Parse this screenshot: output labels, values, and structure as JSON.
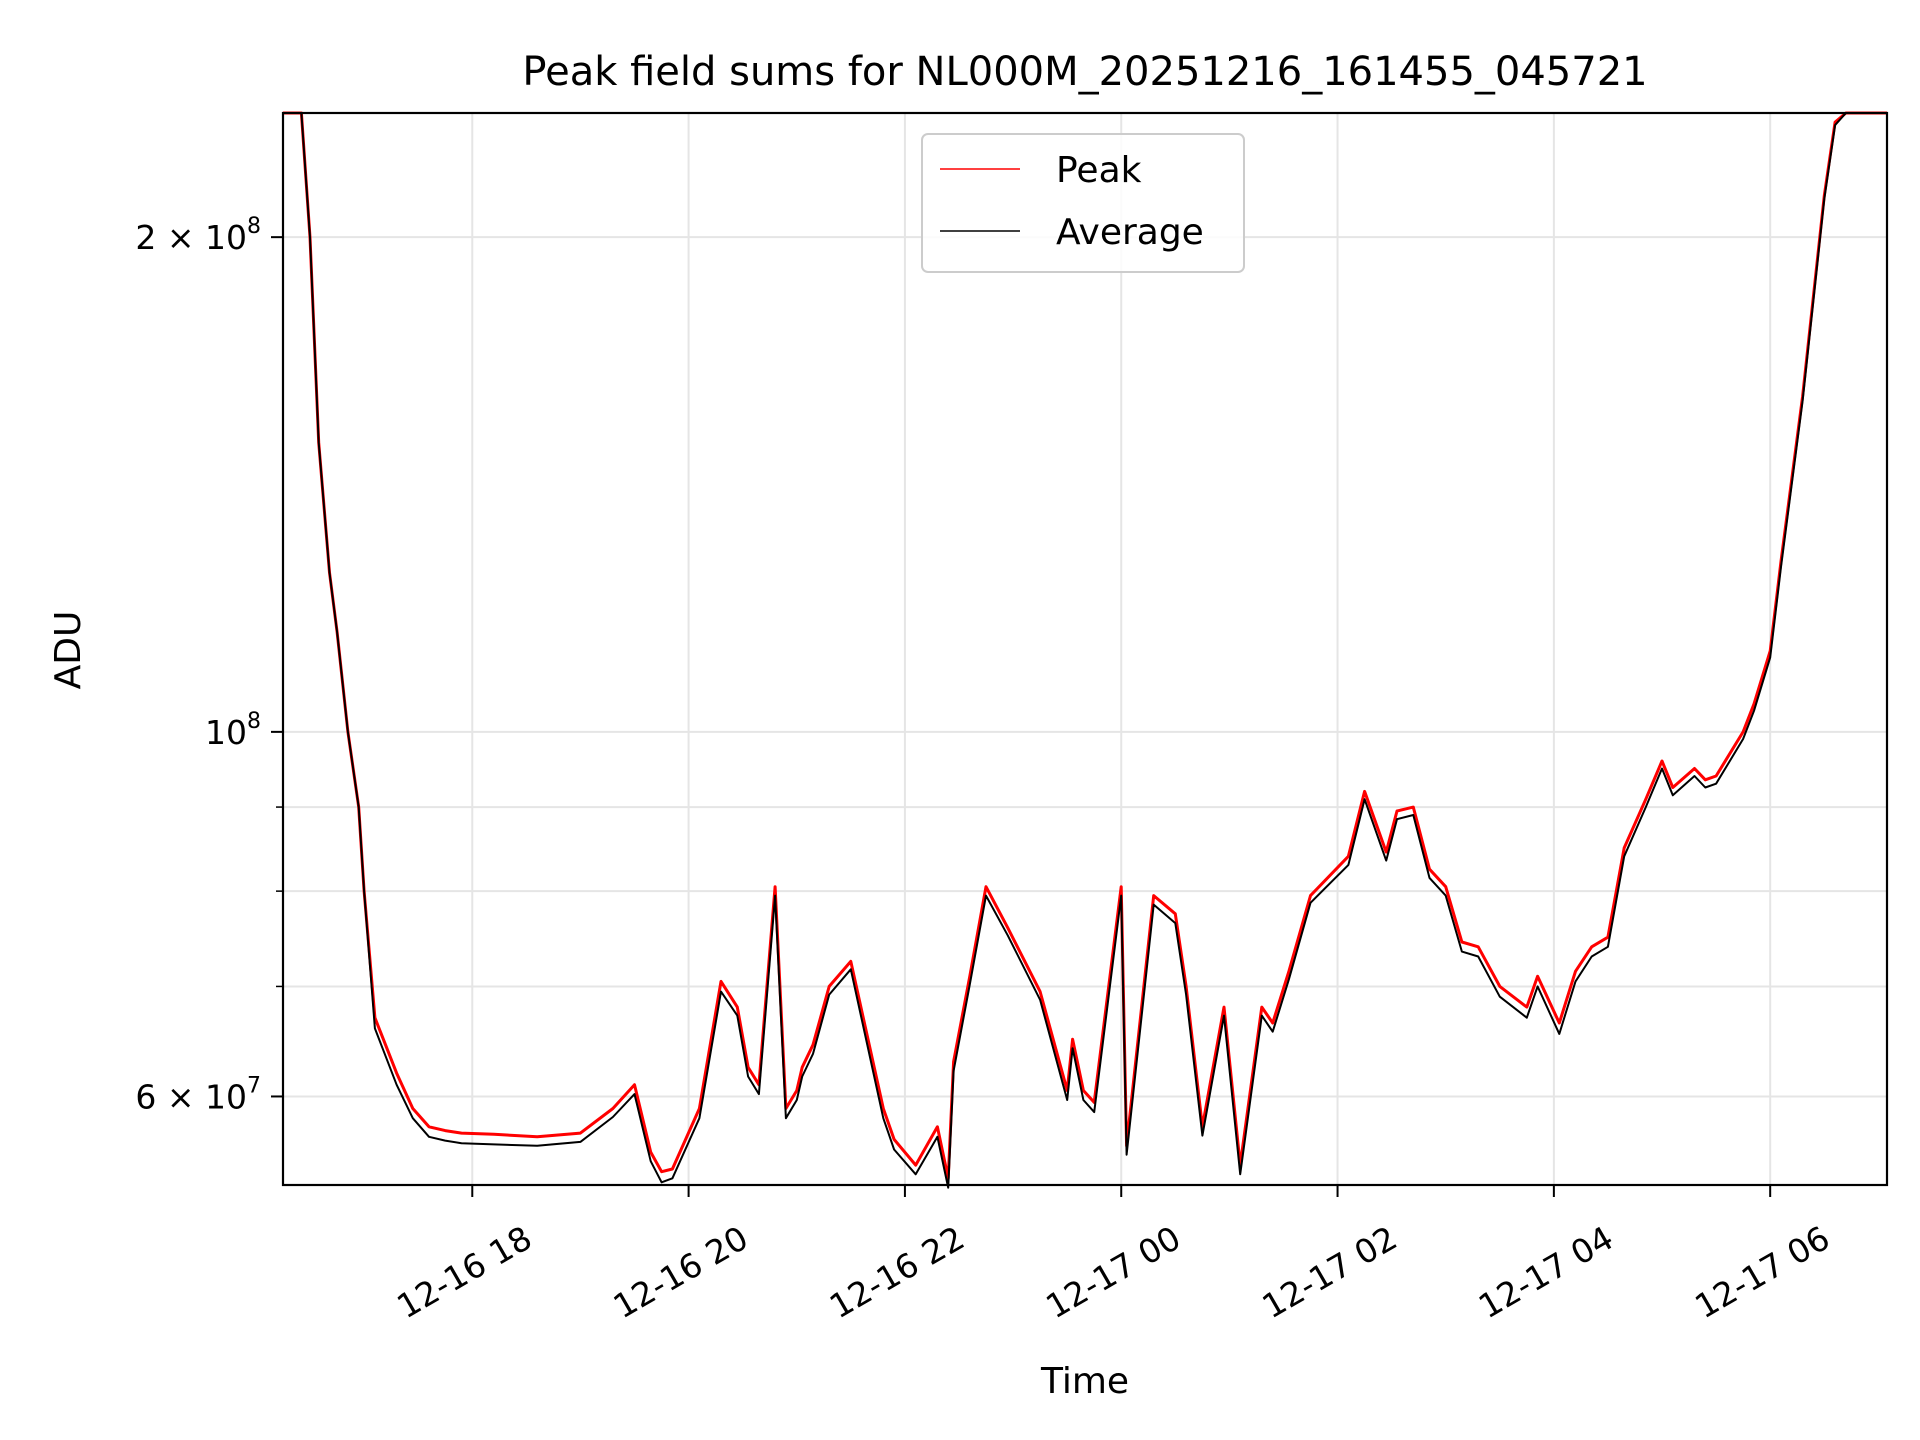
{
  "chart_data": {
    "type": "line",
    "title": "Peak field sums for NL000M_20251216_161455_045721",
    "xlabel": "Time",
    "ylabel": "ADU",
    "yscale": "log",
    "xlim_hours": [
      16.25,
      31.08
    ],
    "ylim": [
      53000000,
      238000000
    ],
    "grid": true,
    "legend_position": "upper center",
    "x_ticks": [
      {
        "hour": 18,
        "label": "12-16 18"
      },
      {
        "hour": 20,
        "label": "12-16 20"
      },
      {
        "hour": 22,
        "label": "12-16 22"
      },
      {
        "hour": 24,
        "label": "12-17 00"
      },
      {
        "hour": 26,
        "label": "12-17 02"
      },
      {
        "hour": 28,
        "label": "12-17 04"
      },
      {
        "hour": 30,
        "label": "12-17 06"
      }
    ],
    "y_major_ticks": [
      {
        "value": 60000000,
        "mantissa": "6",
        "exponent": "7"
      },
      {
        "value": 100000000,
        "mantissa": "",
        "exponent": "8"
      },
      {
        "value": 200000000,
        "mantissa": "2",
        "exponent": "8"
      }
    ],
    "y_minor_ticks": [
      70000000,
      80000000,
      90000000
    ],
    "series": [
      {
        "name": "Peak",
        "color": "#ff0000",
        "x_hours": [
          16.25,
          16.42,
          16.5,
          16.58,
          16.68,
          16.75,
          16.85,
          16.95,
          17.0,
          17.1,
          17.3,
          17.45,
          17.6,
          17.75,
          17.9,
          18.2,
          18.6,
          19.0,
          19.3,
          19.5,
          19.65,
          19.75,
          19.85,
          20.1,
          20.3,
          20.45,
          20.55,
          20.65,
          20.8,
          20.9,
          21.0,
          21.05,
          21.15,
          21.3,
          21.5,
          21.8,
          21.9,
          22.1,
          22.3,
          22.4,
          22.45,
          22.6,
          22.75,
          22.95,
          23.25,
          23.5,
          23.55,
          23.65,
          23.75,
          24.0,
          24.05,
          24.3,
          24.5,
          24.6,
          24.75,
          24.95,
          25.1,
          25.3,
          25.4,
          25.55,
          25.75,
          26.1,
          26.25,
          26.45,
          26.55,
          26.7,
          26.85,
          27.0,
          27.15,
          27.3,
          27.5,
          27.75,
          27.85,
          28.05,
          28.2,
          28.35,
          28.5,
          28.65,
          28.85,
          29.0,
          29.1,
          29.3,
          29.4,
          29.5,
          29.75,
          29.85,
          30.0,
          30.1,
          30.3,
          30.5,
          30.6,
          30.7,
          30.82,
          30.93,
          31.08
        ],
        "values": [
          238000000,
          238000000,
          200000000,
          150000000,
          125000000,
          115000000,
          100000000,
          90000000,
          80000000,
          67000000,
          62000000,
          59000000,
          57500000,
          57200000,
          57000000,
          56900000,
          56700000,
          57000000,
          59000000,
          61000000,
          55500000,
          54000000,
          54200000,
          59000000,
          70500000,
          68000000,
          62500000,
          61000000,
          80500000,
          59000000,
          60500000,
          62500000,
          64500000,
          70000000,
          72500000,
          59000000,
          56500000,
          54500000,
          57500000,
          53500000,
          63000000,
          71000000,
          80500000,
          76000000,
          69500000,
          60500000,
          65000000,
          60500000,
          59500000,
          80500000,
          56000000,
          79500000,
          77500000,
          70000000,
          57500000,
          68000000,
          54500000,
          68000000,
          66500000,
          71500000,
          79500000,
          84000000,
          92000000,
          84500000,
          89500000,
          90000000,
          82500000,
          80500000,
          74500000,
          74000000,
          70000000,
          68000000,
          71000000,
          66500000,
          71500000,
          74000000,
          75000000,
          85000000,
          91000000,
          96000000,
          92500000,
          95000000,
          93500000,
          94000000,
          100000000,
          104000000,
          112000000,
          127000000,
          160000000,
          212000000,
          235000000,
          238000000,
          238000000,
          238000000,
          238000000
        ]
      },
      {
        "name": "Average",
        "color": "#000000",
        "x_hours": [
          16.25,
          16.42,
          16.5,
          16.58,
          16.68,
          16.75,
          16.85,
          16.95,
          17.0,
          17.1,
          17.3,
          17.45,
          17.6,
          17.75,
          17.9,
          18.2,
          18.6,
          19.0,
          19.3,
          19.5,
          19.65,
          19.75,
          19.85,
          20.1,
          20.3,
          20.45,
          20.55,
          20.65,
          20.8,
          20.9,
          21.0,
          21.05,
          21.15,
          21.3,
          21.5,
          21.8,
          21.9,
          22.1,
          22.3,
          22.4,
          22.45,
          22.6,
          22.75,
          22.95,
          23.25,
          23.5,
          23.55,
          23.65,
          23.75,
          24.0,
          24.05,
          24.3,
          24.5,
          24.6,
          24.75,
          24.95,
          25.1,
          25.3,
          25.4,
          25.55,
          25.75,
          26.1,
          26.25,
          26.45,
          26.55,
          26.7,
          26.85,
          27.0,
          27.15,
          27.3,
          27.5,
          27.75,
          27.85,
          28.05,
          28.2,
          28.35,
          28.5,
          28.65,
          28.85,
          29.0,
          29.1,
          29.3,
          29.4,
          29.5,
          29.75,
          29.85,
          30.0,
          30.1,
          30.3,
          30.5,
          30.6,
          30.7,
          30.82,
          30.93,
          31.08
        ],
        "values": [
          238000000,
          238000000,
          200000000,
          150000000,
          125000000,
          115000000,
          100000000,
          90000000,
          80000000,
          66000000,
          61000000,
          58200000,
          56700000,
          56400000,
          56200000,
          56100000,
          56000000,
          56300000,
          58300000,
          60200000,
          54800000,
          53200000,
          53500000,
          58200000,
          69500000,
          67200000,
          61700000,
          60200000,
          79500000,
          58200000,
          59700000,
          61700000,
          63700000,
          69200000,
          71700000,
          58200000,
          55700000,
          53800000,
          56700000,
          52800000,
          62200000,
          70200000,
          79500000,
          75200000,
          68700000,
          59700000,
          64200000,
          59700000,
          58700000,
          79500000,
          55300000,
          78500000,
          76500000,
          69200000,
          56800000,
          67200000,
          53800000,
          67200000,
          65700000,
          70700000,
          78700000,
          83000000,
          91000000,
          83500000,
          88500000,
          89000000,
          81500000,
          79500000,
          73500000,
          73000000,
          69000000,
          67000000,
          70000000,
          65500000,
          70500000,
          73000000,
          74000000,
          84000000,
          90000000,
          95000000,
          91500000,
          94000000,
          92500000,
          93000000,
          99000000,
          103000000,
          111000000,
          126000000,
          159000000,
          211000000,
          234000000,
          238000000,
          238000000,
          238000000,
          238000000
        ]
      }
    ]
  }
}
